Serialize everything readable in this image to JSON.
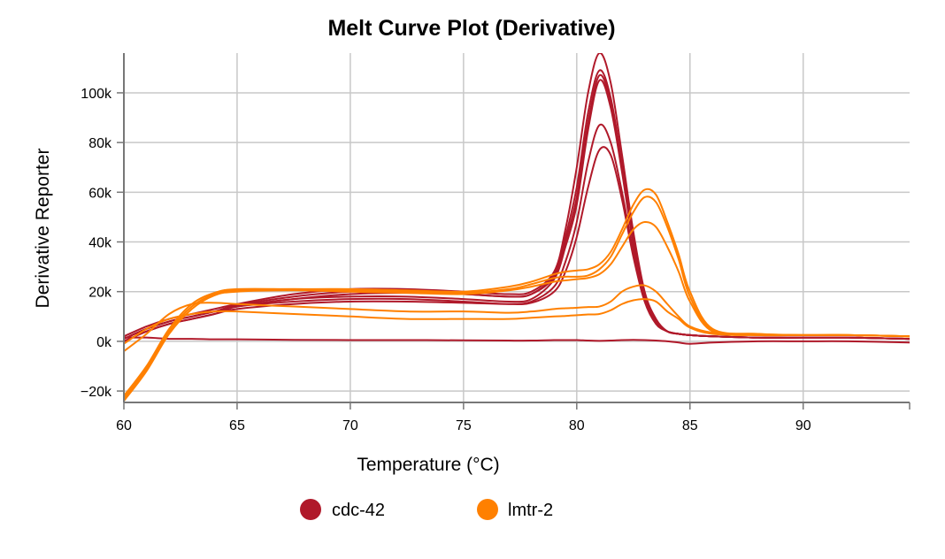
{
  "chart_data": {
    "type": "line",
    "title": "Melt Curve Plot (Derivative)",
    "xlabel": "Temperature (°C)",
    "ylabel": "Derivative Reporter",
    "xlim": [
      60,
      94.7
    ],
    "ylim": [
      -24.6,
      116
    ],
    "y_units": "thousands (k)",
    "grid": true,
    "legend_placement": "bottom",
    "x_ticks": [
      60,
      65,
      70,
      75,
      80,
      85,
      90
    ],
    "x_tick_labels": [
      "60",
      "65",
      "70",
      "75",
      "80",
      "85",
      "90"
    ],
    "y_ticks": [
      -20,
      0,
      20,
      40,
      60,
      80,
      100
    ],
    "y_tick_labels": [
      "−20k",
      "0k",
      "20k",
      "40k",
      "60k",
      "80k",
      "100k"
    ],
    "legend": [
      {
        "name": "cdc-42",
        "color": "#b0192a"
      },
      {
        "name": "lmtr-2",
        "color": "#ff8000"
      }
    ],
    "x": [
      60,
      61,
      62,
      63,
      64,
      65,
      67.5,
      70,
      72.5,
      75,
      77,
      78,
      79,
      79.5,
      80,
      80.5,
      81,
      81.5,
      82,
      82.5,
      83,
      83.5,
      84,
      84.5,
      85,
      86,
      88,
      90,
      92,
      94.7
    ],
    "series": [
      {
        "group": "cdc-42",
        "values": [
          2,
          6,
          9,
          11,
          13,
          15,
          19,
          21,
          21,
          20,
          19,
          20,
          28,
          45,
          70,
          100,
          116,
          104,
          75,
          44,
          20,
          9,
          4,
          3,
          2.5,
          2,
          1.5,
          1.5,
          1.5,
          1
        ]
      },
      {
        "group": "cdc-42",
        "values": [
          1,
          5,
          8,
          10,
          12,
          14.5,
          18,
          20,
          20,
          19,
          18,
          19,
          27,
          42,
          62,
          92,
          109,
          98,
          71,
          41,
          19,
          8,
          4,
          3,
          2.5,
          2,
          1.5,
          1.5,
          1.5,
          1
        ]
      },
      {
        "group": "cdc-42",
        "values": [
          0,
          4,
          7,
          9,
          11,
          14,
          17,
          19,
          19.5,
          19,
          18,
          19,
          26,
          40,
          58,
          88,
          107,
          96,
          70,
          40,
          19,
          8,
          4,
          3,
          2.5,
          2,
          1.5,
          1.5,
          1.5,
          1
        ]
      },
      {
        "group": "cdc-42",
        "values": [
          1,
          5,
          8,
          10,
          12,
          14,
          17,
          18,
          18,
          17,
          16,
          17,
          25,
          38,
          55,
          85,
          105,
          94,
          68,
          39,
          18,
          8,
          4,
          3,
          2.5,
          2,
          1.5,
          1.5,
          1.5,
          1
        ]
      },
      {
        "group": "cdc-42",
        "values": [
          0,
          4,
          7,
          9,
          11,
          13,
          15,
          16,
          16,
          15.5,
          15,
          16,
          22,
          32,
          48,
          72,
          87,
          80,
          60,
          36,
          17,
          8,
          4,
          3,
          2.5,
          2,
          1.5,
          1.5,
          1.5,
          1
        ]
      },
      {
        "group": "cdc-42",
        "values": [
          1,
          5,
          8,
          10,
          12,
          14,
          16,
          17,
          17,
          16,
          15,
          15.5,
          20,
          28,
          42,
          62,
          77,
          75,
          57,
          34,
          16,
          7,
          4,
          3,
          2.5,
          2,
          1.5,
          1.5,
          1.5,
          1
        ]
      },
      {
        "group": "cdc-42",
        "values": [
          1.5,
          1.5,
          1,
          1,
          0.8,
          0.8,
          0.6,
          0.5,
          0.5,
          0.4,
          0.3,
          0.3,
          0.5,
          0.5,
          0.5,
          0.3,
          0.2,
          0.3,
          0.5,
          0.6,
          0.5,
          0.3,
          0,
          -0.5,
          -1,
          -0.5,
          0,
          0,
          0,
          -0.5
        ]
      },
      {
        "group": "lmtr-2",
        "values": [
          -22,
          -10,
          5,
          15,
          19.5,
          21,
          21,
          21,
          20.5,
          20,
          22,
          24,
          27,
          28,
          28.5,
          29,
          31,
          36,
          45,
          55,
          61,
          59,
          48,
          35,
          20,
          5,
          3,
          2.5,
          2.5,
          2
        ]
      },
      {
        "group": "lmtr-2",
        "values": [
          -23,
          -11,
          4,
          14,
          19,
          20.5,
          21,
          20.5,
          20,
          19.5,
          21,
          23,
          25.5,
          26,
          26,
          26.5,
          29,
          34,
          43,
          52,
          58,
          56,
          46,
          33,
          18,
          4.5,
          3,
          2.5,
          2.5,
          2
        ]
      },
      {
        "group": "lmtr-2",
        "values": [
          -24,
          -12,
          3,
          13,
          18.5,
          20,
          20.5,
          20,
          19.5,
          19,
          20.5,
          22,
          24,
          24.5,
          25,
          25.5,
          27,
          31,
          38,
          45,
          48,
          46,
          38,
          28,
          16,
          4,
          2.5,
          2.5,
          2.5,
          2
        ]
      },
      {
        "group": "lmtr-2",
        "values": [
          -4,
          3,
          11,
          15,
          15.5,
          15,
          14,
          13,
          12,
          12,
          11.5,
          12,
          13,
          13.3,
          13.5,
          13.8,
          14,
          16,
          20,
          22,
          22.5,
          20,
          15,
          10,
          6,
          3.5,
          2.5,
          2.5,
          2.5,
          2
        ]
      },
      {
        "group": "lmtr-2",
        "values": [
          -1,
          5,
          9,
          11,
          12,
          12,
          11,
          10,
          9,
          9,
          9,
          9.5,
          10,
          10.2,
          10.5,
          10.8,
          11,
          12.5,
          15,
          16.5,
          17,
          16,
          12,
          9,
          5.5,
          3,
          2.5,
          2.5,
          2.5,
          2
        ]
      }
    ]
  }
}
